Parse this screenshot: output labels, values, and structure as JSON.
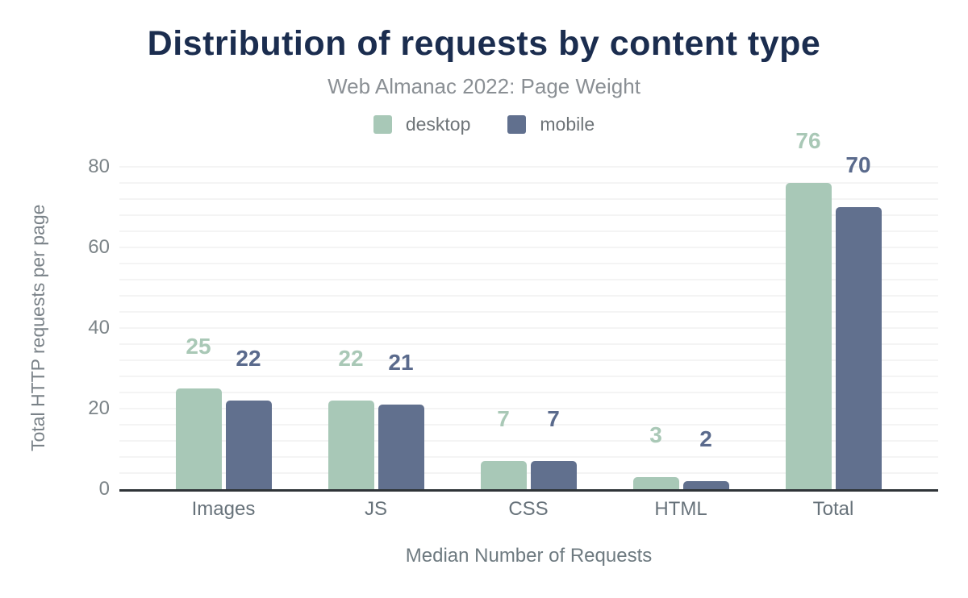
{
  "header": {
    "title": "Distribution of requests by content type",
    "subtitle": "Web Almanac 2022: Page Weight"
  },
  "chart_data": {
    "type": "bar",
    "title": "Distribution of requests by content type",
    "subtitle": "Web Almanac 2022: Page Weight",
    "categories": [
      "Images",
      "JS",
      "CSS",
      "HTML",
      "Total"
    ],
    "series": [
      {
        "name": "desktop",
        "color": "#a8c8b7",
        "label_color": "#a9c8b6",
        "values": [
          25,
          22,
          7,
          3,
          76
        ]
      },
      {
        "name": "mobile",
        "color": "#61708e",
        "label_color": "#5a6a8c",
        "values": [
          22,
          21,
          7,
          2,
          70
        ]
      }
    ],
    "xlabel": "Median Number of Requests",
    "ylabel": "Total HTTP requests per page",
    "yticks": [
      0,
      20,
      40,
      60,
      80
    ],
    "ylim": [
      0,
      84
    ],
    "minor_grid_interval": 4,
    "grid": "horizontal-minor",
    "legend_position": "top",
    "data_labels": true,
    "background": "#ffffff",
    "axis_line_color": "#2f3438",
    "title_color": "#1b2d4f"
  }
}
